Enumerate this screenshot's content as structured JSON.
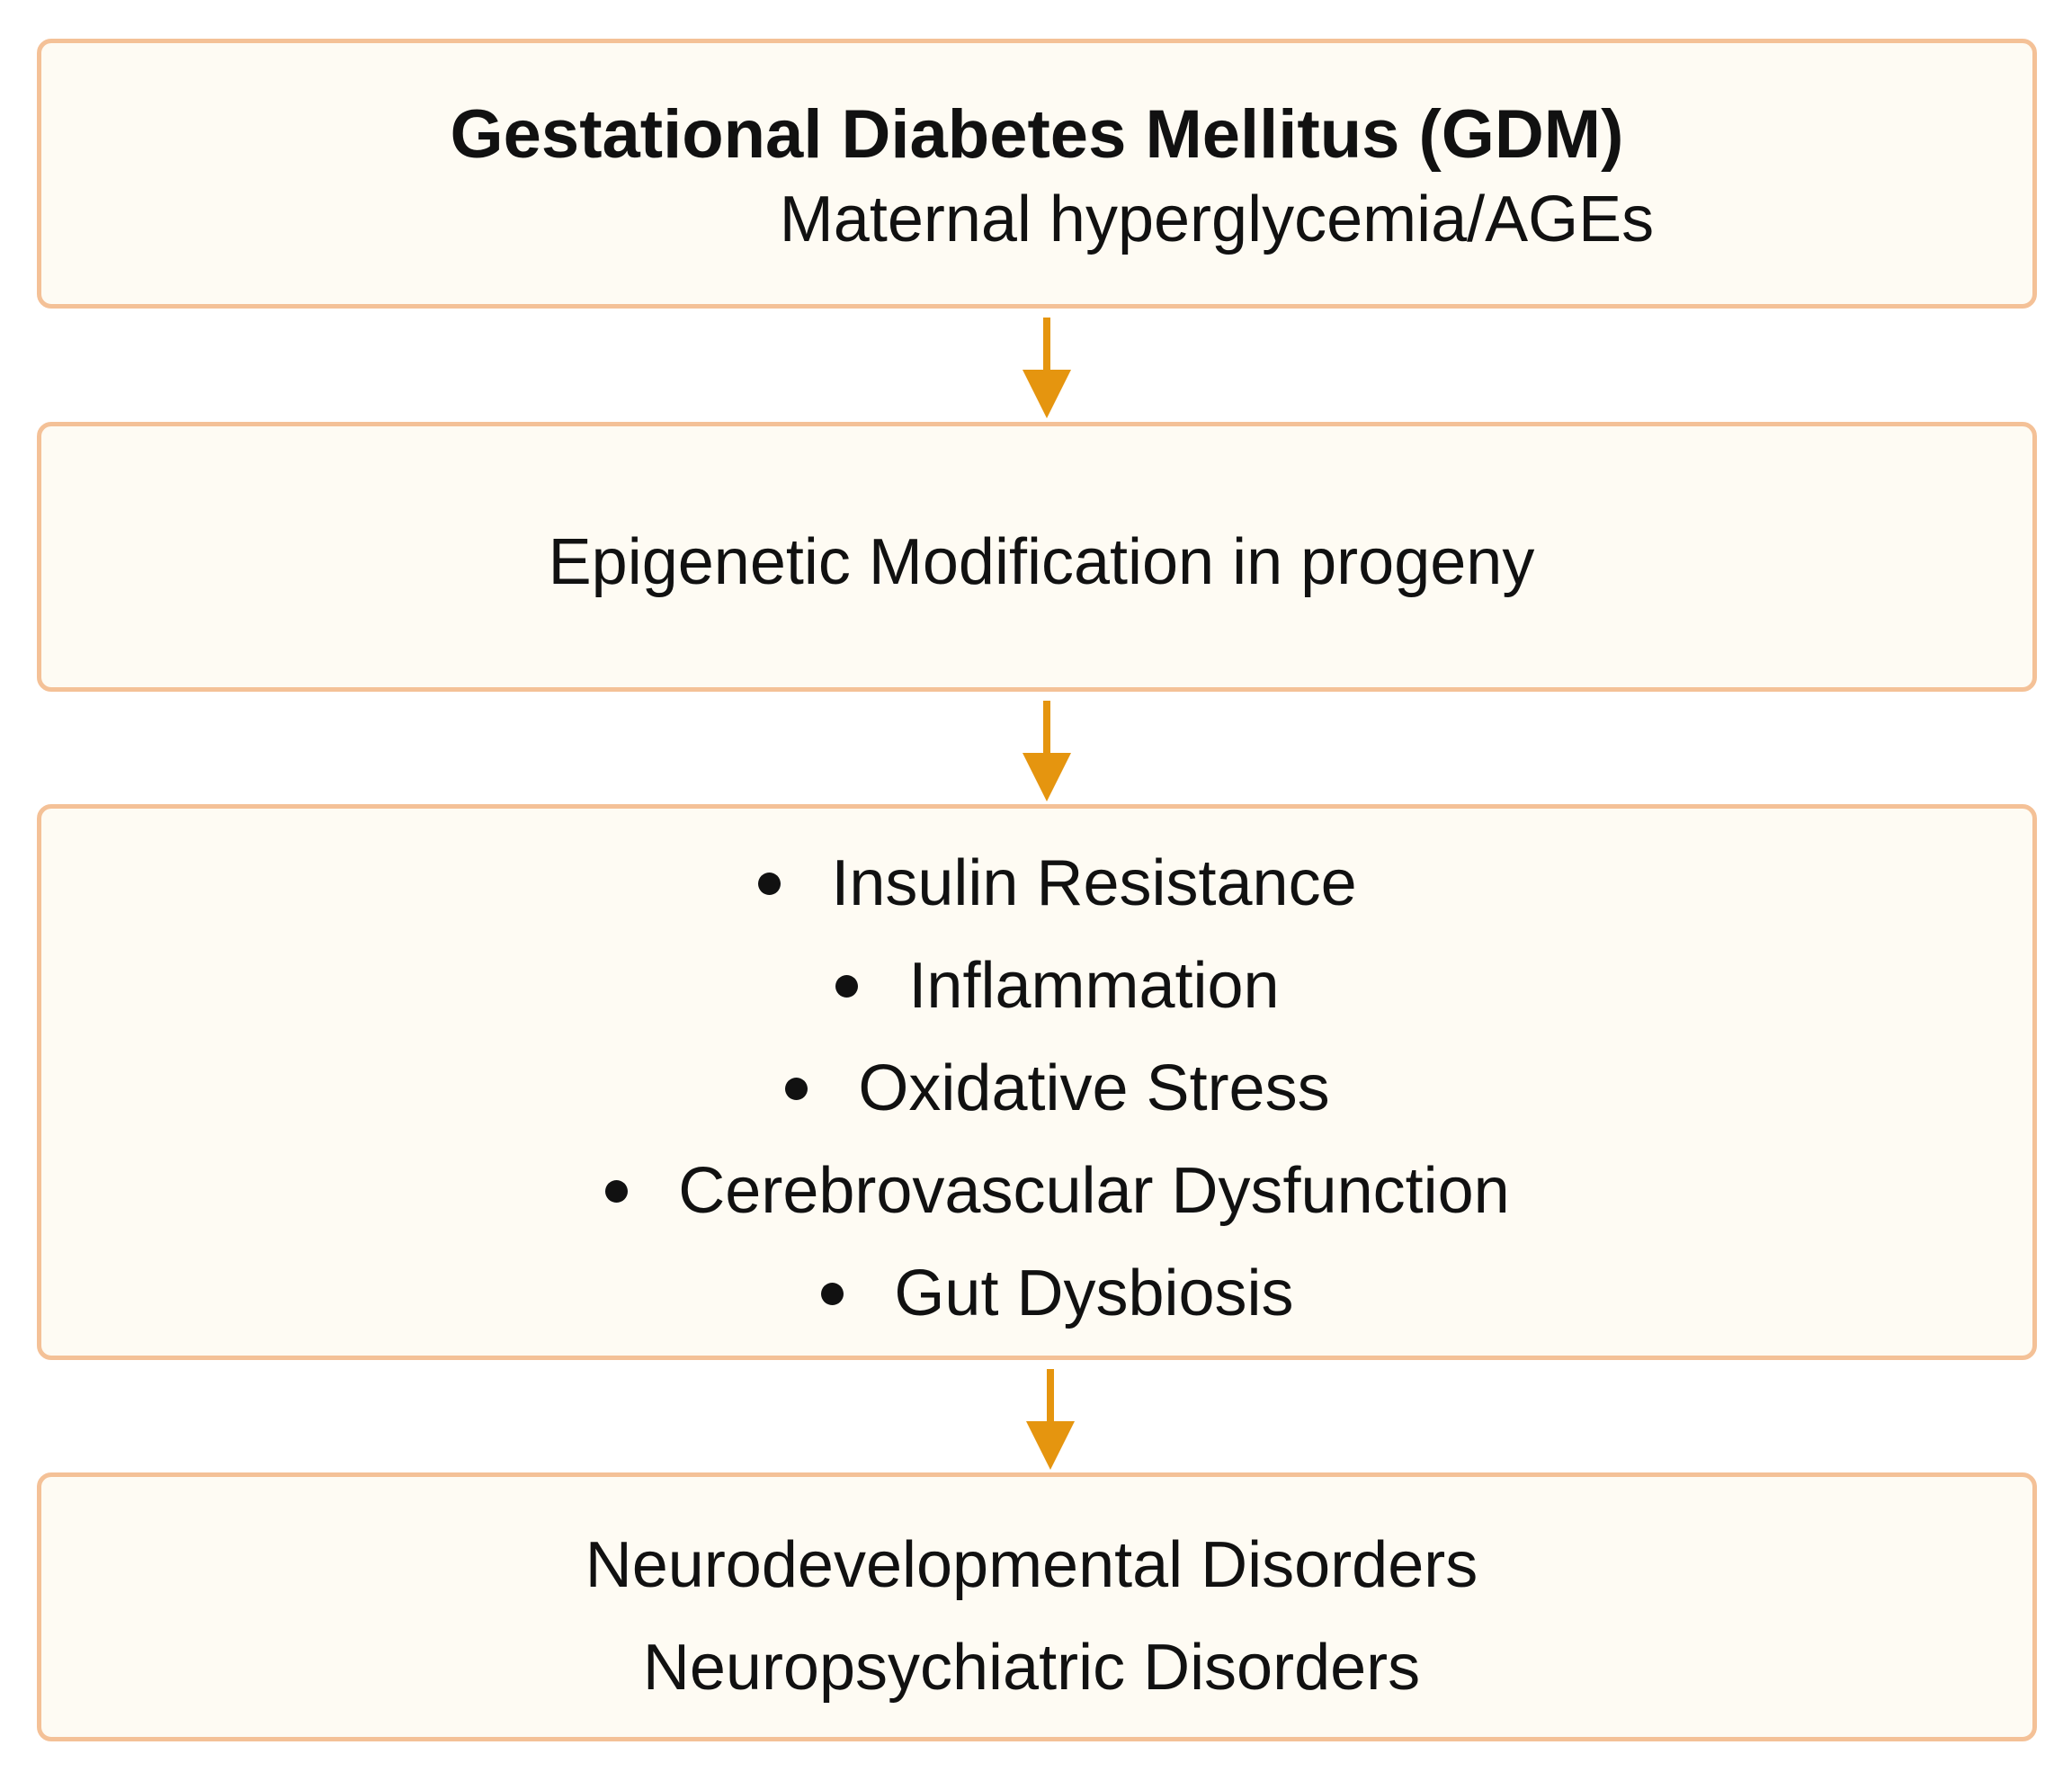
{
  "colors": {
    "box_fill": "#fefbf3",
    "box_border": "#f4c197",
    "arrow": "#e5950f",
    "text": "#111111"
  },
  "boxes": {
    "gdm": {
      "title": "Gestational Diabetes Mellitus (GDM)",
      "subtitle": "Maternal hyperglycemia/AGEs"
    },
    "epigenetic": {
      "text": "Epigenetic Modification in progeny"
    },
    "mechanisms": {
      "items": [
        "Insulin Resistance",
        "Inflammation",
        "Oxidative Stress",
        "Cerebrovascular Dysfunction",
        "Gut Dysbiosis"
      ]
    },
    "outcomes": {
      "lines": [
        "Neurodevelopmental Disorders",
        "Neuropsychiatric Disorders"
      ]
    }
  }
}
